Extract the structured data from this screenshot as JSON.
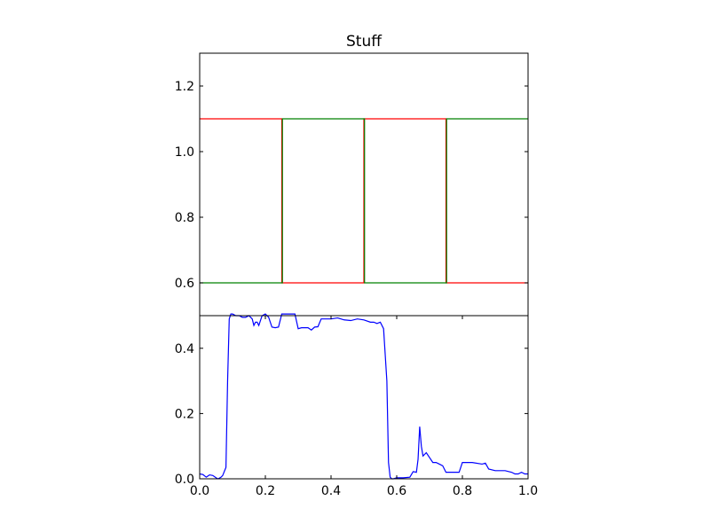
{
  "chart_data": [
    {
      "type": "line",
      "title": "Stuff",
      "xlabel": "",
      "ylabel": "",
      "xlim": [
        0,
        1
      ],
      "ylim": [
        0.5,
        1.3
      ],
      "x_ticks": [],
      "y_ticks": [
        0.6,
        0.8,
        1.0,
        1.2
      ],
      "y_tick_labels": [
        "0.6",
        "0.8",
        "1.0",
        "1.2"
      ],
      "grid": false,
      "series": [
        {
          "color": "#ff0000",
          "x": [
            0,
            0.25,
            0.25,
            0.5,
            0.5,
            0.75,
            0.75,
            1.0
          ],
          "y": [
            1.1,
            1.1,
            0.6,
            0.6,
            1.1,
            1.1,
            0.6,
            0.6
          ]
        },
        {
          "color": "#008000",
          "x": [
            0,
            0.252,
            0.252,
            0.502,
            0.502,
            0.752,
            0.752,
            1.0
          ],
          "y": [
            0.6,
            0.6,
            1.1,
            1.1,
            0.6,
            0.6,
            1.1,
            1.1
          ]
        }
      ]
    },
    {
      "type": "line",
      "title": "",
      "xlabel": "",
      "ylabel": "",
      "xlim": [
        0,
        1
      ],
      "ylim": [
        0,
        0.5
      ],
      "x_ticks": [
        0.0,
        0.2,
        0.4,
        0.6,
        0.8,
        1.0
      ],
      "x_tick_labels": [
        "0.0",
        "0.2",
        "0.4",
        "0.6",
        "0.8",
        "1.0"
      ],
      "y_ticks": [
        0.0,
        0.2,
        0.4
      ],
      "y_tick_labels": [
        "0.0",
        "0.2",
        "0.4"
      ],
      "grid": false,
      "series": [
        {
          "color": "#0000ff",
          "x": [
            0,
            0.01,
            0.02,
            0.03,
            0.04,
            0.05,
            0.055,
            0.06,
            0.065,
            0.07,
            0.08,
            0.085,
            0.09,
            0.095,
            0.1,
            0.11,
            0.12,
            0.13,
            0.14,
            0.15,
            0.16,
            0.165,
            0.17,
            0.175,
            0.18,
            0.19,
            0.2,
            0.21,
            0.22,
            0.23,
            0.24,
            0.25,
            0.26,
            0.27,
            0.28,
            0.29,
            0.3,
            0.31,
            0.32,
            0.33,
            0.34,
            0.35,
            0.36,
            0.37,
            0.38,
            0.39,
            0.4,
            0.42,
            0.44,
            0.46,
            0.48,
            0.5,
            0.52,
            0.53,
            0.54,
            0.55,
            0.56,
            0.57,
            0.575,
            0.58,
            0.585,
            0.59,
            0.6,
            0.62,
            0.64,
            0.65,
            0.66,
            0.665,
            0.67,
            0.675,
            0.68,
            0.69,
            0.7,
            0.71,
            0.72,
            0.73,
            0.74,
            0.75,
            0.77,
            0.78,
            0.79,
            0.8,
            0.83,
            0.86,
            0.87,
            0.88,
            0.9,
            0.93,
            0.95,
            0.96,
            0.97,
            0.98,
            0.99,
            1.0
          ],
          "y": [
            0.015,
            0.013,
            0.005,
            0.012,
            0.01,
            0.003,
            0.0,
            0.002,
            0.005,
            0.01,
            0.035,
            0.3,
            0.49,
            0.505,
            0.505,
            0.5,
            0.5,
            0.495,
            0.495,
            0.5,
            0.49,
            0.47,
            0.48,
            0.48,
            0.47,
            0.5,
            0.505,
            0.495,
            0.465,
            0.463,
            0.465,
            0.505,
            0.505,
            0.505,
            0.505,
            0.505,
            0.46,
            0.463,
            0.463,
            0.463,
            0.456,
            0.465,
            0.466,
            0.49,
            0.49,
            0.49,
            0.49,
            0.493,
            0.487,
            0.485,
            0.49,
            0.487,
            0.48,
            0.48,
            0.476,
            0.48,
            0.46,
            0.3,
            0.05,
            0.005,
            0.0,
            0.0,
            0.003,
            0.003,
            0.005,
            0.022,
            0.02,
            0.06,
            0.16,
            0.1,
            0.07,
            0.08,
            0.065,
            0.05,
            0.05,
            0.045,
            0.04,
            0.02,
            0.02,
            0.02,
            0.02,
            0.05,
            0.05,
            0.045,
            0.048,
            0.03,
            0.025,
            0.025,
            0.02,
            0.015,
            0.015,
            0.02,
            0.015,
            0.015
          ]
        }
      ]
    }
  ]
}
